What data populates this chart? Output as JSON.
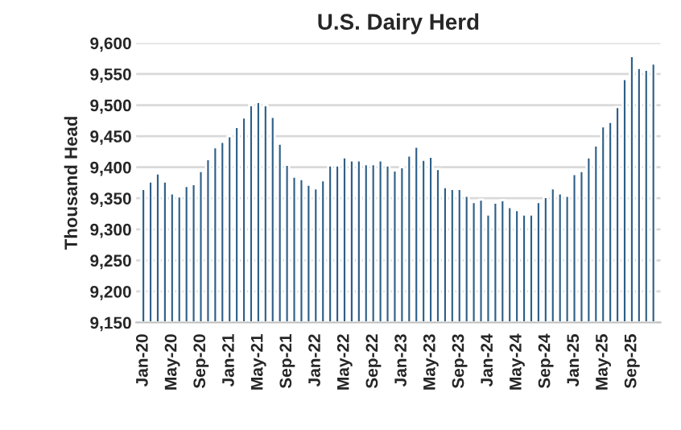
{
  "chart_data": {
    "type": "bar",
    "title": "U.S. Dairy Herd",
    "ylabel": "Thousand Head",
    "categories": [
      "Jan-20",
      null,
      null,
      null,
      "May-20",
      null,
      null,
      null,
      "Sep-20",
      null,
      null,
      null,
      "Jan-21",
      null,
      null,
      null,
      "May-21",
      null,
      null,
      null,
      "Sep-21",
      null,
      null,
      null,
      "Jan-22",
      null,
      null,
      null,
      "May-22",
      null,
      null,
      null,
      "Sep-22",
      null,
      null,
      null,
      "Jan-23",
      null,
      null,
      null,
      "May-23",
      null,
      null,
      null,
      "Sep-23",
      null,
      null,
      null,
      "Jan-24",
      null,
      null,
      null,
      "May-24",
      null,
      null,
      null,
      "Sep-24",
      null,
      null,
      null,
      "Jan-25",
      null,
      null,
      null,
      "May-25",
      null,
      null,
      null,
      "Sep-25",
      null,
      null,
      null
    ],
    "values": [
      9365,
      9377,
      9390,
      9377,
      9358,
      9353,
      9370,
      9373,
      9394,
      9413,
      9432,
      9441,
      9450,
      9465,
      9480,
      9500,
      9505,
      9500,
      9481,
      9438,
      9404,
      9385,
      9381,
      9372,
      9366,
      9379,
      9403,
      9403,
      9416,
      9411,
      9411,
      9405,
      9405,
      9411,
      9403,
      9395,
      9400,
      9419,
      9433,
      9412,
      9417,
      9397,
      9368,
      9365,
      9365,
      9354,
      9344,
      9348,
      9324,
      9343,
      9347,
      9336,
      9331,
      9324,
      9324,
      9344,
      9352,
      9366,
      9358,
      9354,
      9389,
      9394,
      9416,
      9435,
      9466,
      9473,
      9497,
      9542,
      9579,
      9560,
      9557,
      9567
    ],
    "color": "#2e5f87",
    "ylim": [
      9150,
      9600
    ],
    "yticks": [
      {
        "value": 9150,
        "label": "9,150"
      },
      {
        "value": 9200,
        "label": "9,200"
      },
      {
        "value": 9250,
        "label": "9,250"
      },
      {
        "value": 9300,
        "label": "9,300"
      },
      {
        "value": 9350,
        "label": "9,350"
      },
      {
        "value": 9400,
        "label": "9,400"
      },
      {
        "value": 9450,
        "label": "9,450"
      },
      {
        "value": 9500,
        "label": "9,500"
      },
      {
        "value": 9550,
        "label": "9,550"
      },
      {
        "value": 9600,
        "label": "9,600"
      }
    ],
    "grid": "y",
    "legend": false
  }
}
